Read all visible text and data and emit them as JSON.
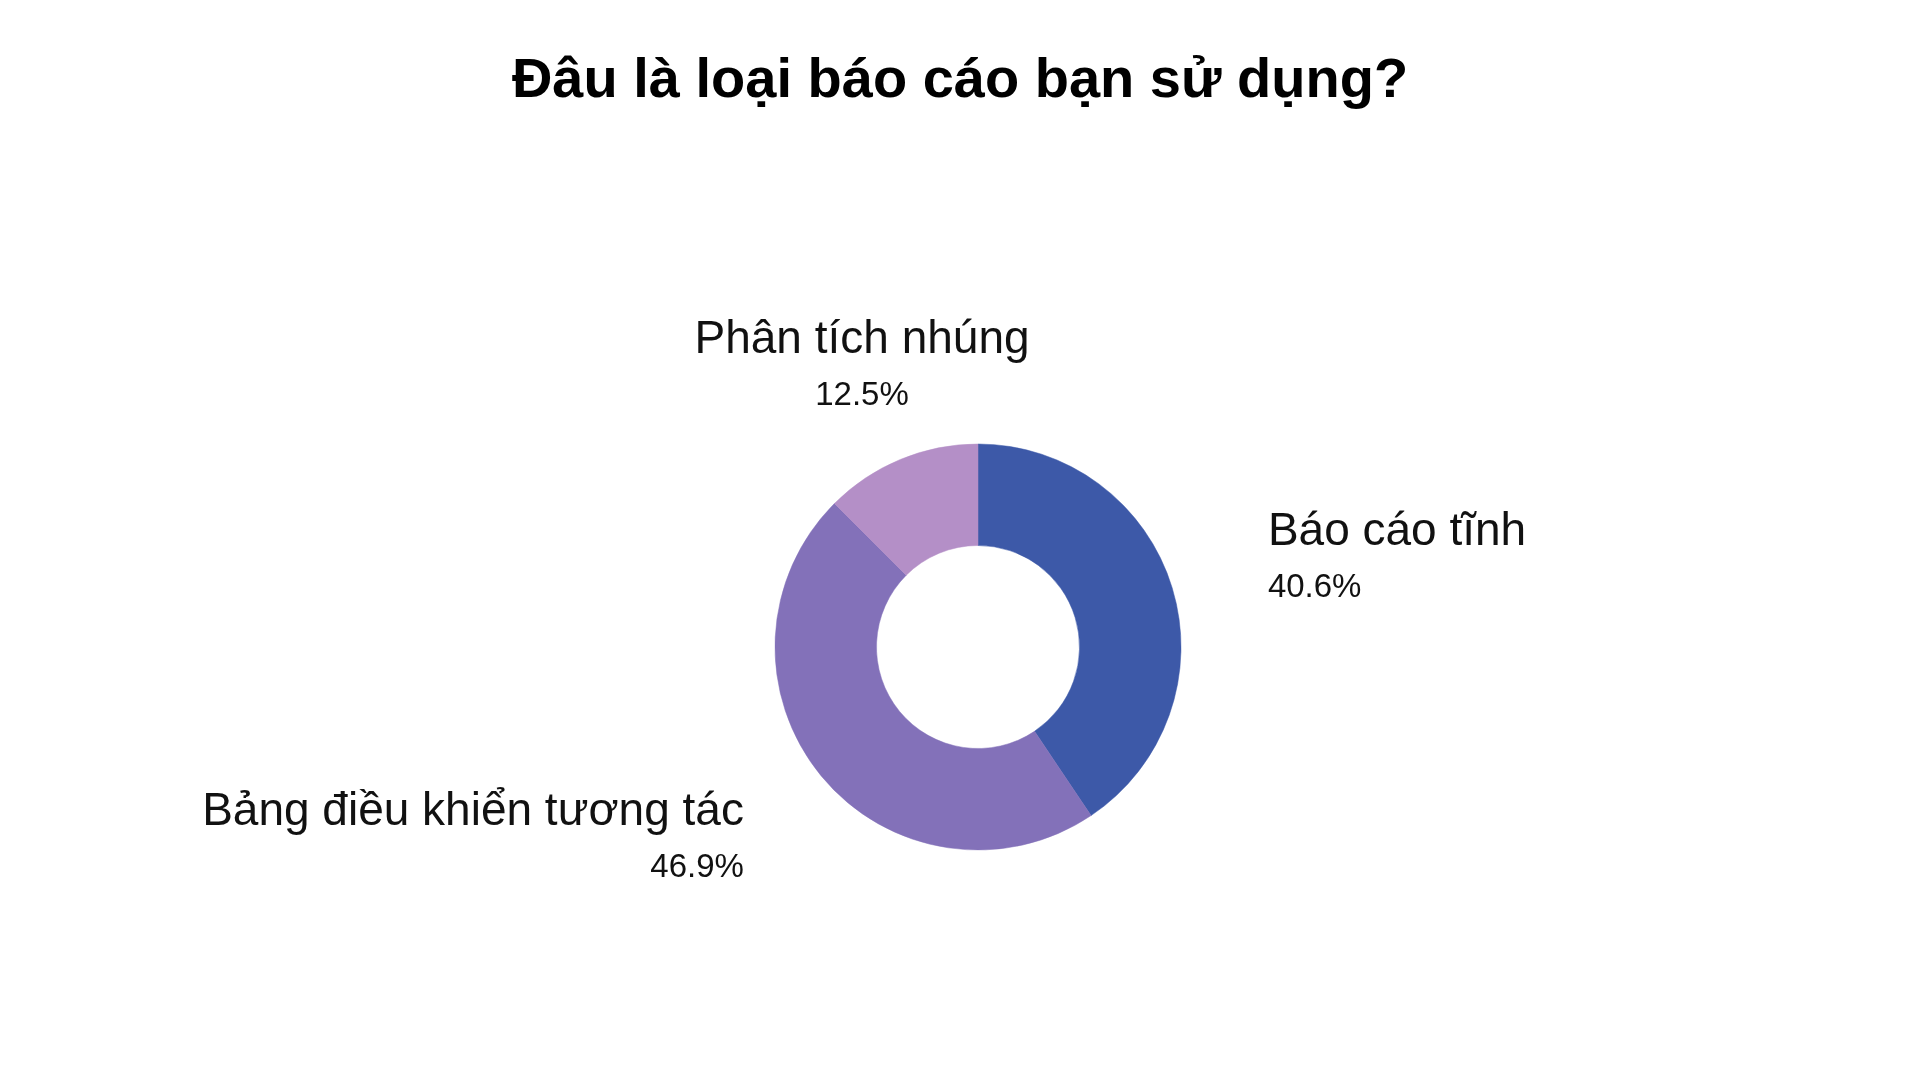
{
  "chart_data": {
    "type": "donut",
    "title": "Đâu là loại báo cáo bạn sử dụng?",
    "categories": [
      "Báo cáo tĩnh",
      "Bảng điều khiển tương tác",
      "Phân tích nhúng"
    ],
    "values": [
      40.6,
      46.9,
      12.5
    ],
    "colors": [
      "#3d59a8",
      "#8371b9",
      "#b48fc7"
    ],
    "value_labels": [
      "40.6%",
      "46.9%",
      "12.5%"
    ]
  }
}
